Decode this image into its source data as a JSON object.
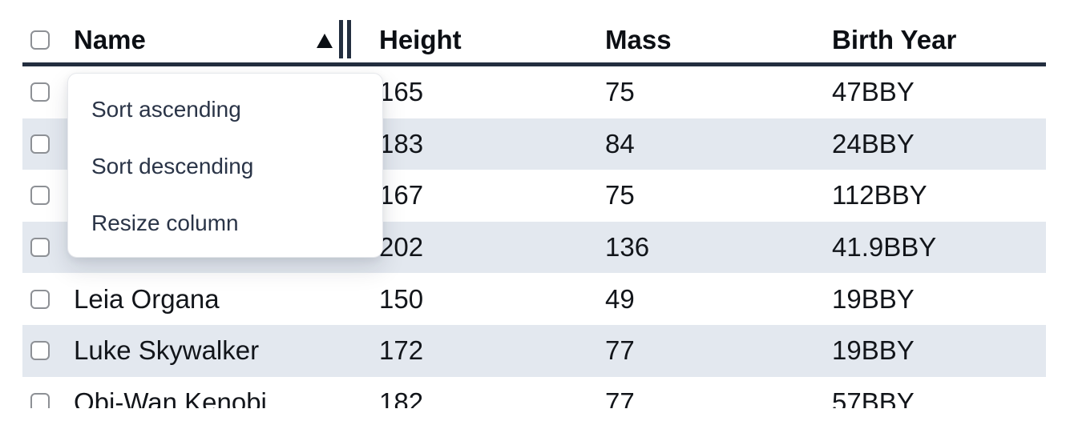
{
  "colors": {
    "stripe": "#e3e8ef",
    "header-border": "#232e3f",
    "table-text": "#12151a",
    "header-text": "#0c0f14",
    "menu-text": "#2a3447",
    "checkbox-border": "#8d9095"
  },
  "table": {
    "columns": [
      "Name",
      "Height",
      "Mass",
      "Birth Year"
    ],
    "sort": {
      "column": "Name",
      "direction": "ascending"
    },
    "rows": [
      {
        "name": "",
        "height": "165",
        "mass": "75",
        "birth_year": "47BBY"
      },
      {
        "name": "",
        "height": "183",
        "mass": "84",
        "birth_year": "24BBY"
      },
      {
        "name": "",
        "height": "167",
        "mass": "75",
        "birth_year": "112BBY"
      },
      {
        "name": "",
        "height": "202",
        "mass": "136",
        "birth_year": "41.9BBY"
      },
      {
        "name": "Leia Organa",
        "height": "150",
        "mass": "49",
        "birth_year": "19BBY"
      },
      {
        "name": "Luke Skywalker",
        "height": "172",
        "mass": "77",
        "birth_year": "19BBY"
      },
      {
        "name": "Obi-Wan Kenobi",
        "height": "182",
        "mass": "77",
        "birth_year": "57BBY"
      }
    ]
  },
  "column_menu": {
    "items": [
      "Sort ascending",
      "Sort descending",
      "Resize column"
    ]
  }
}
